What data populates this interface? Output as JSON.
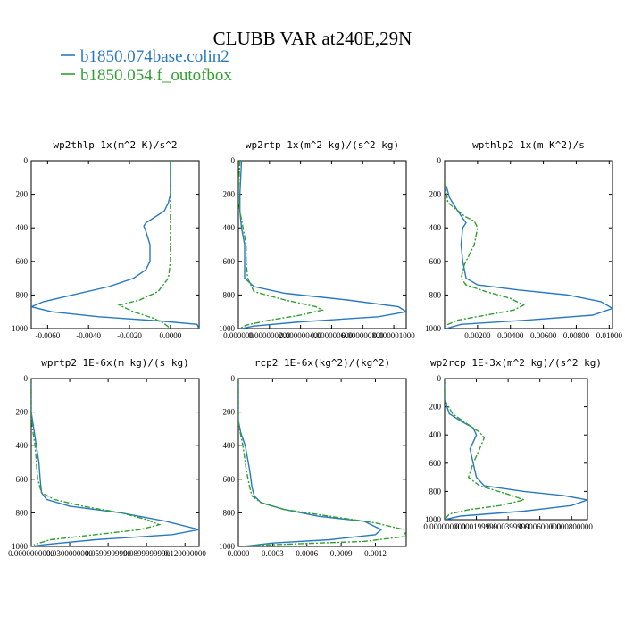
{
  "figure": {
    "title": "CLUBB VAR at240E,29N",
    "legend": [
      {
        "name": "b1850.074base.colin2",
        "color": "#2a79c0",
        "dash": "none"
      },
      {
        "name": "b1850.054.f_outofbox",
        "color": "#30a030",
        "dash": "6,2,2,2"
      }
    ]
  },
  "chart_data": [
    {
      "type": "line",
      "title": "wp2thlp  1x(m^2 K)/s^2",
      "ylim": [
        1000,
        0
      ],
      "yticks": [
        0,
        200,
        400,
        600,
        800,
        1000
      ],
      "xlim": [
        -0.0068,
        0.0014
      ],
      "xticks": [
        -0.006,
        -0.004,
        -0.002,
        0.0
      ],
      "xticklabels": [
        "-0.0060",
        "-0.0040",
        "-0.0020",
        "0.0000"
      ],
      "series": [
        {
          "name": "b1850.074base.colin2",
          "points": [
            [
              0,
              0
            ],
            [
              0,
              100
            ],
            [
              0,
              200
            ],
            [
              -0.0001,
              250
            ],
            [
              -0.0003,
              300
            ],
            [
              -0.0012,
              370
            ],
            [
              -0.0013,
              390
            ],
            [
              -0.0012,
              420
            ],
            [
              -0.001,
              500
            ],
            [
              -0.001,
              600
            ],
            [
              -0.0012,
              650
            ],
            [
              -0.0018,
              700
            ],
            [
              -0.003,
              750
            ],
            [
              -0.0048,
              800
            ],
            [
              -0.0062,
              840
            ],
            [
              -0.0068,
              870
            ],
            [
              -0.0058,
              900
            ],
            [
              -0.0035,
              930
            ],
            [
              -0.0005,
              955
            ],
            [
              0.0013,
              975
            ],
            [
              0.0014,
              1000
            ]
          ]
        },
        {
          "name": "b1850.054.f_outofbox",
          "points": [
            [
              0,
              0
            ],
            [
              0,
              200
            ],
            [
              0,
              400
            ],
            [
              0,
              600
            ],
            [
              -0.0001,
              700
            ],
            [
              -0.0006,
              780
            ],
            [
              -0.0015,
              830
            ],
            [
              -0.0025,
              860
            ],
            [
              -0.0018,
              900
            ],
            [
              -0.0008,
              940
            ],
            [
              -0.0003,
              970
            ],
            [
              0,
              1000
            ]
          ]
        }
      ]
    },
    {
      "type": "line",
      "title": "wp2rtp  1x(m^2 kg)/(s^2 kg)",
      "ylim": [
        1000,
        0
      ],
      "yticks": [
        0,
        200,
        400,
        600,
        800,
        1000
      ],
      "xlim": [
        0,
        1.08e-06
      ],
      "xticks": [
        0,
        2e-07,
        4e-07,
        6e-07,
        8e-07,
        1e-06
      ],
      "xticklabels": [
        "0.000000",
        "0.000000200",
        "0.000000400",
        "0.000000600",
        "0.000000800",
        "0.000001000"
      ],
      "series": [
        {
          "name": "b1850.074base.colin2",
          "points": [
            [
              2e-08,
              0
            ],
            [
              1e-08,
              200
            ],
            [
              1e-08,
              300
            ],
            [
              2e-08,
              400
            ],
            [
              4e-08,
              500
            ],
            [
              4e-08,
              600
            ],
            [
              4e-08,
              700
            ],
            [
              1e-07,
              750
            ],
            [
              3e-07,
              790
            ],
            [
              7e-07,
              830
            ],
            [
              1.03e-06,
              870
            ],
            [
              1.08e-06,
              900
            ],
            [
              9e-07,
              930
            ],
            [
              4e-07,
              960
            ],
            [
              1e-07,
              985
            ],
            [
              2e-08,
              1000
            ]
          ]
        },
        {
          "name": "b1850.054.f_outofbox",
          "points": [
            [
              1e-08,
              0
            ],
            [
              0,
              200
            ],
            [
              1e-08,
              300
            ],
            [
              3e-08,
              400
            ],
            [
              5e-08,
              500
            ],
            [
              5e-08,
              600
            ],
            [
              6e-08,
              700
            ],
            [
              1e-07,
              780
            ],
            [
              3e-07,
              830
            ],
            [
              5e-07,
              870
            ],
            [
              5.4e-07,
              890
            ],
            [
              4e-07,
              920
            ],
            [
              2e-07,
              950
            ],
            [
              5e-08,
              980
            ],
            [
              1e-08,
              1000
            ]
          ]
        }
      ]
    },
    {
      "type": "line",
      "title": "wpthlp2  1x(m K^2)/s",
      "ylim": [
        1000,
        0
      ],
      "yticks": [
        0,
        200,
        400,
        600,
        800,
        1000
      ],
      "xlim": [
        0,
        0.0102
      ],
      "xticks": [
        0.002,
        0.004,
        0.006,
        0.008,
        0.01
      ],
      "xticklabels": [
        "0.00200",
        "0.00400",
        "0.00600",
        "0.00800",
        "0.01000"
      ],
      "series": [
        {
          "name": "b1850.074base.colin2",
          "points": [
            [
              0.0001,
              150
            ],
            [
              0.0003,
              220
            ],
            [
              0.0008,
              300
            ],
            [
              0.0013,
              370
            ],
            [
              0.0011,
              400
            ],
            [
              0.001,
              500
            ],
            [
              0.0011,
              600
            ],
            [
              0.0013,
              700
            ],
            [
              0.002,
              740
            ],
            [
              0.0045,
              770
            ],
            [
              0.0075,
              800
            ],
            [
              0.0095,
              840
            ],
            [
              0.0102,
              880
            ],
            [
              0.009,
              920
            ],
            [
              0.005,
              950
            ],
            [
              0.001,
              975
            ],
            [
              0.0001,
              1000
            ]
          ]
        },
        {
          "name": "b1850.054.f_outofbox",
          "points": [
            [
              0,
              130
            ],
            [
              0.0002,
              250
            ],
            [
              0.0012,
              330
            ],
            [
              0.0018,
              360
            ],
            [
              0.002,
              400
            ],
            [
              0.0018,
              500
            ],
            [
              0.0012,
              620
            ],
            [
              0.001,
              700
            ],
            [
              0.0013,
              740
            ],
            [
              0.0025,
              780
            ],
            [
              0.004,
              820
            ],
            [
              0.0048,
              860
            ],
            [
              0.0042,
              890
            ],
            [
              0.0025,
              920
            ],
            [
              0.0008,
              950
            ],
            [
              0.0001,
              980
            ]
          ]
        }
      ]
    },
    {
      "type": "line",
      "title": "wprtp2  1E-6x(m kg)/(s kg)",
      "ylim": [
        1000,
        0
      ],
      "yticks": [
        0,
        200,
        400,
        600,
        800,
        1000
      ],
      "xlim": [
        0,
        0.131
      ],
      "xticks": [
        0,
        0.03,
        0.06,
        0.09,
        0.12
      ],
      "xticklabels": [
        "0.0000000000",
        "0.0300000000",
        "0.0599999990",
        "0.0899999990",
        "0.120000000"
      ],
      "series": [
        {
          "name": "b1850.074base.colin2",
          "points": [
            [
              0,
              0
            ],
            [
              0,
              200
            ],
            [
              0.002,
              300
            ],
            [
              0.004,
              400
            ],
            [
              0.006,
              500
            ],
            [
              0.007,
              600
            ],
            [
              0.008,
              680
            ],
            [
              0.012,
              720
            ],
            [
              0.03,
              760
            ],
            [
              0.07,
              800
            ],
            [
              0.105,
              850
            ],
            [
              0.131,
              900
            ],
            [
              0.11,
              930
            ],
            [
              0.05,
              960
            ],
            [
              0.01,
              990
            ],
            [
              0,
              1000
            ]
          ]
        },
        {
          "name": "b1850.054.f_outofbox",
          "points": [
            [
              0,
              0
            ],
            [
              0,
              200
            ],
            [
              0.001,
              300
            ],
            [
              0.003,
              400
            ],
            [
              0.004,
              500
            ],
            [
              0.005,
              600
            ],
            [
              0.008,
              680
            ],
            [
              0.018,
              720
            ],
            [
              0.04,
              760
            ],
            [
              0.07,
              800
            ],
            [
              0.09,
              840
            ],
            [
              0.1,
              870
            ],
            [
              0.085,
              900
            ],
            [
              0.05,
              930
            ],
            [
              0.015,
              960
            ],
            [
              0.002,
              990
            ]
          ]
        }
      ]
    },
    {
      "type": "line",
      "title": "rcp2  1E-6x(kg^2)/(kg^2)",
      "ylim": [
        1000,
        0
      ],
      "yticks": [
        0,
        200,
        400,
        600,
        800,
        1000
      ],
      "xlim": [
        0,
        0.00147
      ],
      "xticks": [
        0,
        0.0003,
        0.0006,
        0.0009,
        0.0012
      ],
      "xticklabels": [
        "0.0000",
        "0.0003",
        "0.0006",
        "0.0009",
        "0.0012"
      ],
      "series": [
        {
          "name": "b1850.074base.colin2",
          "points": [
            [
              0,
              0
            ],
            [
              0,
              250
            ],
            [
              2e-05,
              320
            ],
            [
              6e-05,
              400
            ],
            [
              0.0001,
              550
            ],
            [
              0.00012,
              650
            ],
            [
              0.00014,
              700
            ],
            [
              0.0002,
              740
            ],
            [
              0.0004,
              780
            ],
            [
              0.0007,
              820
            ],
            [
              0.0011,
              850
            ],
            [
              0.00125,
              900
            ],
            [
              0.0012,
              930
            ],
            [
              0.0008,
              960
            ],
            [
              0.0003,
              980
            ],
            [
              5e-05,
              1000
            ]
          ]
        },
        {
          "name": "b1850.054.f_outofbox",
          "points": [
            [
              0,
              0
            ],
            [
              0,
              250
            ],
            [
              1e-05,
              300
            ],
            [
              4e-05,
              400
            ],
            [
              7e-05,
              550
            ],
            [
              0.0001,
              650
            ],
            [
              0.00012,
              700
            ],
            [
              0.0002,
              740
            ],
            [
              0.0004,
              780
            ],
            [
              0.0008,
              820
            ],
            [
              0.0012,
              860
            ],
            [
              0.00145,
              900
            ],
            [
              0.00147,
              940
            ],
            [
              0.0011,
              970
            ],
            [
              0.0003,
              990
            ],
            [
              2e-05,
              1000
            ]
          ]
        }
      ]
    },
    {
      "type": "line",
      "title": "wp2rcp  1E-3x(m^2 kg)/(s^2 kg)",
      "ylim": [
        1000,
        0
      ],
      "yticks": [
        0,
        200,
        400,
        600,
        800,
        1000
      ],
      "xlim": [
        0,
        0.0009
      ],
      "xticks": [
        0,
        0.0002,
        0.0004,
        0.0006,
        0.0008
      ],
      "xticklabels": [
        "0.000000000",
        "0.000199999",
        "0.000399999",
        "0.000600000",
        "0.000800000"
      ],
      "series": [
        {
          "name": "b1850.074base.colin2",
          "points": [
            [
              0,
              0
            ],
            [
              0,
              150
            ],
            [
              3e-05,
              250
            ],
            [
              0.0001,
              300
            ],
            [
              0.00018,
              350
            ],
            [
              0.0002,
              400
            ],
            [
              0.00016,
              500
            ],
            [
              0.00018,
              600
            ],
            [
              0.0002,
              700
            ],
            [
              0.00025,
              760
            ],
            [
              0.0005,
              800
            ],
            [
              0.00075,
              830
            ],
            [
              0.0009,
              860
            ],
            [
              0.0008,
              900
            ],
            [
              0.0005,
              940
            ],
            [
              0.0001,
              975
            ],
            [
              0,
              1000
            ]
          ]
        },
        {
          "name": "b1850.054.f_outofbox",
          "points": [
            [
              0,
              0
            ],
            [
              0,
              150
            ],
            [
              5e-05,
              250
            ],
            [
              0.00014,
              320
            ],
            [
              0.00022,
              380
            ],
            [
              0.00025,
              420
            ],
            [
              0.00022,
              500
            ],
            [
              0.00018,
              600
            ],
            [
              0.00015,
              700
            ],
            [
              0.00022,
              760
            ],
            [
              0.0004,
              820
            ],
            [
              0.0005,
              860
            ],
            [
              0.00035,
              900
            ],
            [
              0.00015,
              930
            ],
            [
              3e-05,
              960
            ],
            [
              0,
              1000
            ]
          ]
        }
      ]
    }
  ]
}
